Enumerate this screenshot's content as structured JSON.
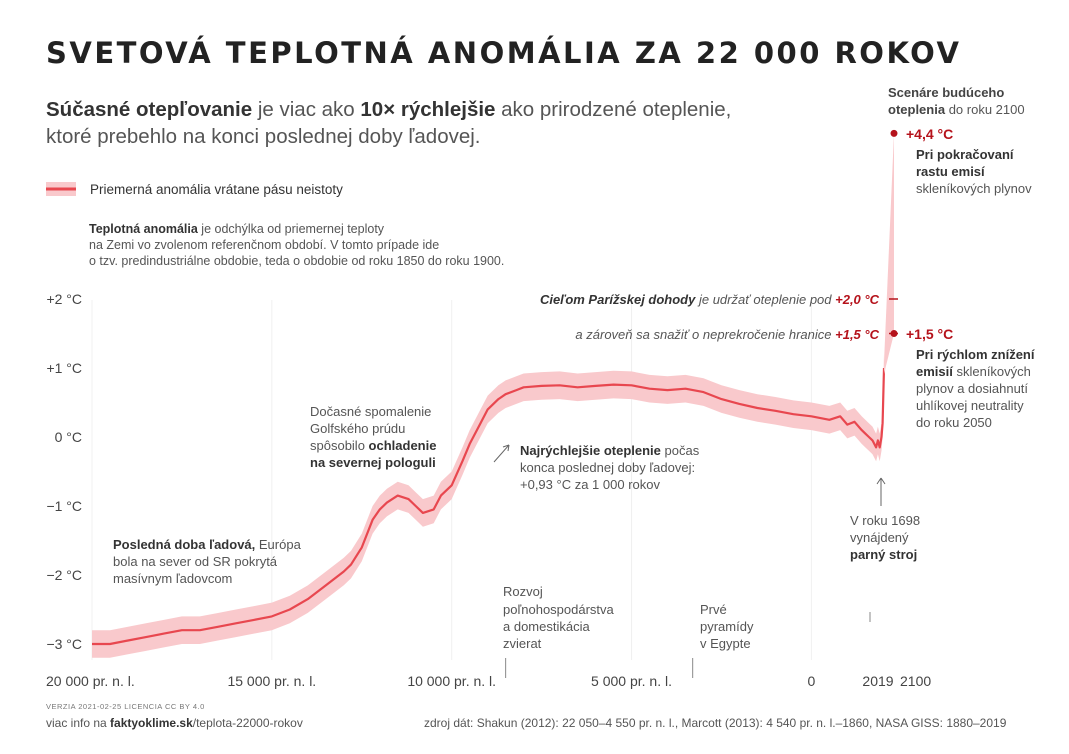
{
  "title": "SVETOVÁ TEPLOTNÁ ANOMÁLIA ZA 22 000 ROKOV",
  "subtitle": {
    "p1": "Súčasné otepľovanie",
    "p2": " je viac ako ",
    "p3": "10× rýchlejšie",
    "p4": " ako prirodzené oteplenie,",
    "line2": "ktoré prebehlo na konci poslednej doby ľadovej."
  },
  "legend_label": "Priemerná anomália vrátane pásu neistoty",
  "definition": {
    "bold": "Teplotná anomália",
    "l1": " je odchýlka od priemernej teploty",
    "l2": "na Zemi vo zvolenom referenčnom období. V tomto prípade ide",
    "l3": "o tzv. predindustriálne obdobie, teda o obdobie od roku 1850 do roku 1900."
  },
  "annotations": {
    "ice_age": {
      "bold": "Posledná doba ľadová,",
      "l1": " Európa",
      "l2": "bola na sever od SR pokrytá",
      "l3": "masívnym ľadovcom"
    },
    "gulf": {
      "l1": "Dočasné spomalenie",
      "l2": "Golfského prúdu",
      "l3a": "spôsobilo ",
      "l3b": "ochladenie",
      "l4": "na severnej pologuli"
    },
    "fastest": {
      "bold": "Najrýchlejšie oteplenie",
      "l1": " počas",
      "l2": "konca poslednej doby ľadovej:",
      "l3": "+0,93 °C za 1 000 rokov"
    },
    "agri": {
      "l1": "Rozvoj",
      "l2": "poľnohospodárstva",
      "l3": "a domestikácia",
      "l4": "zvierat"
    },
    "pyramids": {
      "l1": "Prvé",
      "l2": "pyramídy",
      "l3": "v Egypte"
    },
    "steam": {
      "l1": "V roku 1698",
      "l2": "vynájdený",
      "l3": "parný stroj"
    },
    "paris1": {
      "italic": "Cieľom Parížskej dohody",
      "rest": " je udržať oteplenie pod ",
      "value": "+2,0 °C"
    },
    "paris2": {
      "italic": "a zároveň sa snažiť o neprekročenie hranice ",
      "value": "+1,5 °C"
    },
    "scenarios_title": {
      "bold1": "Scenáre budúceho",
      "bold2": "oteplenia",
      "rest": " do roku 2100"
    },
    "high": {
      "value": "+4,4 °C",
      "l1": "Pri pokračovaní",
      "l2": "rastu emisí",
      "l3": "skleníkových plynov"
    },
    "low": {
      "value": "+1,5 °C",
      "l1": "Pri rýchlom znížení",
      "l2a": "emisií",
      "l2b": " skleníkových",
      "l3": "plynov a dosiahnutí",
      "l4": "uhlíkovej neutrality",
      "l5": "do roku 2050"
    }
  },
  "footer": {
    "version": "VERZIA 2021-02-25   LICENCIA CC BY 4.0",
    "info_prefix": "viac info na ",
    "site": "faktyoklime.sk",
    "path": "/teplota-22000-rokov",
    "sources": "zdroj dát: Shakun (2012): 22 050–4 550 pr. n. l., Marcott (2013): 4 540 pr. n. l.–1860, NASA GISS: 1880–2019"
  },
  "colors": {
    "line": "#e8474f",
    "band": "#f9c9cc",
    "accent": "#b5121b"
  },
  "chart_data": {
    "type": "line",
    "title": "SVETOVÁ TEPLOTNÁ ANOMÁLIA ZA 22 000 ROKOV",
    "ylabel": "",
    "ylim": [
      -3.2,
      2.6
    ],
    "yticks": [
      {
        "value": 2,
        "label": "+2 °C"
      },
      {
        "value": 1,
        "label": "+1 °C"
      },
      {
        "value": 0,
        "label": "0 °C"
      },
      {
        "value": -1,
        "label": "−1 °C"
      },
      {
        "value": -2,
        "label": "−2 °C"
      },
      {
        "value": -3,
        "label": "−3 °C"
      }
    ],
    "xticks": [
      {
        "value": -20000,
        "label": "20 000 pr. n. l."
      },
      {
        "value": -15000,
        "label": "15 000 pr. n. l."
      },
      {
        "value": -10000,
        "label": "10 000 pr. n. l."
      },
      {
        "value": -5000,
        "label": "5 000 pr. n. l."
      },
      {
        "value": 0,
        "label": "0"
      },
      {
        "value": 2019,
        "label": "2019"
      },
      {
        "value": 2100,
        "label": "2100"
      }
    ],
    "series": [
      {
        "name": "Priemerná anomália vrátane pásu neistoty",
        "x": [
          -20000,
          -19500,
          -19000,
          -18500,
          -18000,
          -17500,
          -17000,
          -16500,
          -16000,
          -15500,
          -15000,
          -14500,
          -14000,
          -13500,
          -13000,
          -12800,
          -12500,
          -12200,
          -12000,
          -11800,
          -11500,
          -11200,
          -11000,
          -10800,
          -10500,
          -10300,
          -10000,
          -9700,
          -9500,
          -9200,
          -9000,
          -8700,
          -8500,
          -8200,
          -8000,
          -7500,
          -7000,
          -6500,
          -6000,
          -5500,
          -5000,
          -4500,
          -4000,
          -3500,
          -3000,
          -2500,
          -2000,
          -1500,
          -1000,
          -500,
          0,
          500,
          800,
          1000,
          1200,
          1400,
          1500,
          1600,
          1700,
          1800,
          1850,
          1900,
          1950,
          1980,
          2000,
          2019
        ],
        "y": [
          -3.0,
          -3.0,
          -2.95,
          -2.9,
          -2.85,
          -2.8,
          -2.8,
          -2.75,
          -2.7,
          -2.65,
          -2.6,
          -2.5,
          -2.35,
          -2.15,
          -1.95,
          -1.85,
          -1.6,
          -1.2,
          -1.05,
          -0.95,
          -0.85,
          -0.9,
          -1.0,
          -1.1,
          -1.05,
          -0.85,
          -0.7,
          -0.35,
          -0.1,
          0.2,
          0.4,
          0.55,
          0.62,
          0.68,
          0.72,
          0.74,
          0.75,
          0.72,
          0.74,
          0.76,
          0.75,
          0.7,
          0.68,
          0.7,
          0.65,
          0.55,
          0.48,
          0.42,
          0.38,
          0.33,
          0.3,
          0.25,
          0.3,
          0.18,
          0.22,
          0.1,
          0.05,
          0.0,
          -0.05,
          -0.15,
          -0.05,
          -0.15,
          0.0,
          0.2,
          0.6,
          1.0
        ],
        "band": 0.2
      }
    ],
    "scenarios": [
      {
        "name": "Pri pokračovaní rastu emisí skleníkových plynov",
        "x": [
          2019,
          2100
        ],
        "y": [
          1.0,
          4.4
        ]
      },
      {
        "name": "Pri rýchlom znížení emisií skleníkových plynov a dosiahnutí uhlíkovej neutrality do roku 2050",
        "x": [
          2019,
          2100
        ],
        "y": [
          1.0,
          1.5
        ]
      }
    ],
    "reference_lines": [
      {
        "value": 2.0,
        "label": "+2,0 °C"
      },
      {
        "value": 1.5,
        "label": "+1,5 °C"
      }
    ],
    "grid": false,
    "legend_position": "top-left"
  }
}
